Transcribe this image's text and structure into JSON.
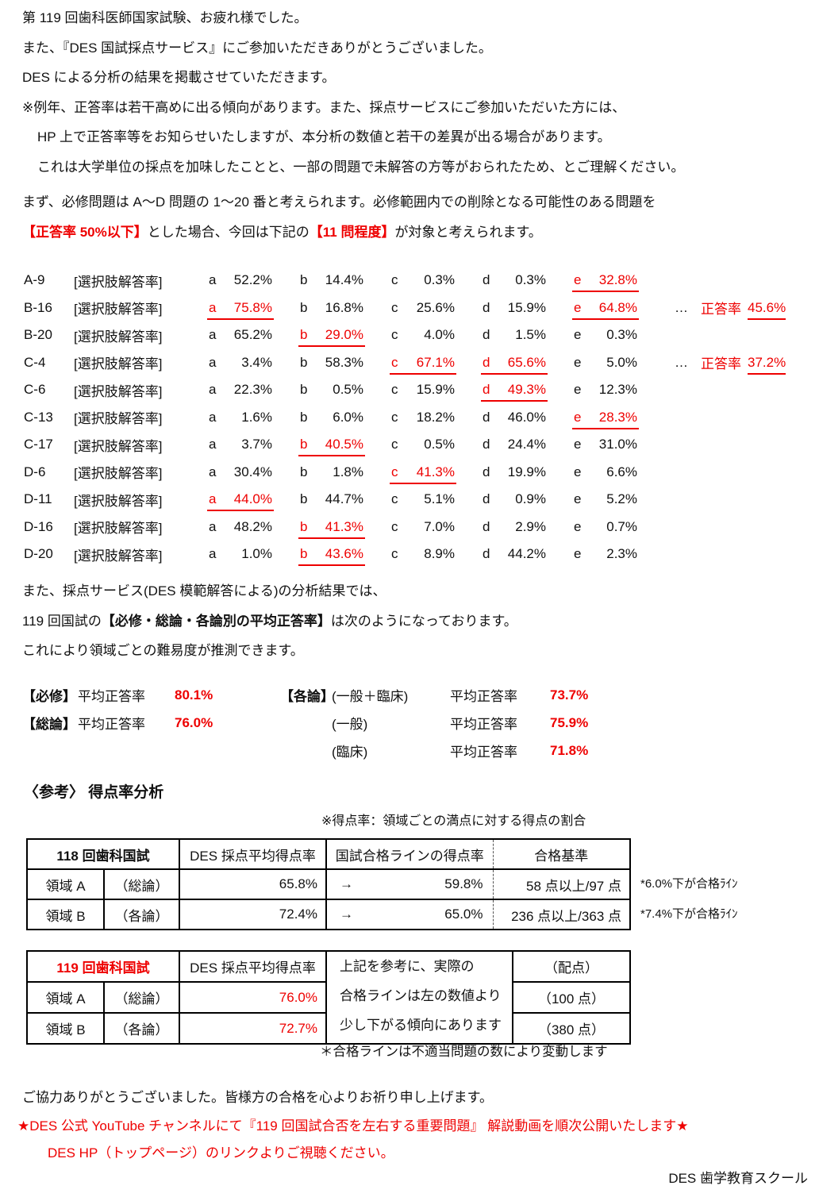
{
  "page": {
    "background": "#ffffff",
    "text_color": "#111111",
    "accent_red": "#ee0000"
  },
  "intro": {
    "lines": [
      "第 119 回歯科医師国家試験、お疲れ様でした。",
      "また、『DES 国試採点サービス』にご参加いただきありがとうございました。",
      "DES による分析の結果を掲載させていただきます。",
      "※例年、正答率は若干高めに出る傾向があります。また、採点サービスにご参加いただいた方には、",
      "HP 上で正答率等をお知らせいたしますが、本分析の数値と若干の差異が出る場合があります。",
      "これは大学単位の採点を加味したことと、一部の問題で未解答の方等がおられたため、とご理解ください。"
    ]
  },
  "premise": {
    "line1": "まず、必修問題は A～D 問題の 1～20 番と考えられます。必修範囲内での削除となる可能性のある問題を",
    "hl1": "【正答率 50%以下】",
    "mid": "とした場合、今回は下記の",
    "hl2": "【11 問程度】",
    "tail": "が対象と考えられます。"
  },
  "answers": {
    "row_label": "[選択肢解答率]",
    "ellipsis": "…",
    "note_label": "正答率",
    "rows": [
      {
        "id": "A-9",
        "a": "52.2%",
        "b": "14.4%",
        "c": "0.3%",
        "d": "0.3%",
        "e": "32.8%",
        "hl": [
          "e"
        ],
        "note": null
      },
      {
        "id": "B-16",
        "a": "75.8%",
        "b": "16.8%",
        "c": "25.6%",
        "d": "15.9%",
        "e": "64.8%",
        "hl": [
          "a",
          "e"
        ],
        "note": "45.6%"
      },
      {
        "id": "B-20",
        "a": "65.2%",
        "b": "29.0%",
        "c": "4.0%",
        "d": "1.5%",
        "e": "0.3%",
        "hl": [
          "b"
        ],
        "note": null
      },
      {
        "id": "C-4",
        "a": "3.4%",
        "b": "58.3%",
        "c": "67.1%",
        "d": "65.6%",
        "e": "5.0%",
        "hl": [
          "c",
          "d"
        ],
        "note": "37.2%"
      },
      {
        "id": "C-6",
        "a": "22.3%",
        "b": "0.5%",
        "c": "15.9%",
        "d": "49.3%",
        "e": "12.3%",
        "hl": [
          "d"
        ],
        "note": null
      },
      {
        "id": "C-13",
        "a": "1.6%",
        "b": "6.0%",
        "c": "18.2%",
        "d": "46.0%",
        "e": "28.3%",
        "hl": [
          "e"
        ],
        "note": null
      },
      {
        "id": "C-17",
        "a": "3.7%",
        "b": "40.5%",
        "c": "0.5%",
        "d": "24.4%",
        "e": "31.0%",
        "hl": [
          "b"
        ],
        "note": null
      },
      {
        "id": "D-6",
        "a": "30.4%",
        "b": "1.8%",
        "c": "41.3%",
        "d": "19.9%",
        "e": "6.6%",
        "hl": [
          "c"
        ],
        "note": null
      },
      {
        "id": "D-11",
        "a": "44.0%",
        "b": "44.7%",
        "c": "5.1%",
        "d": "0.9%",
        "e": "5.2%",
        "hl": [
          "a"
        ],
        "note": null
      },
      {
        "id": "D-16",
        "a": "48.2%",
        "b": "41.3%",
        "c": "7.0%",
        "d": "2.9%",
        "e": "0.7%",
        "hl": [
          "b"
        ],
        "note": null
      },
      {
        "id": "D-20",
        "a": "1.0%",
        "b": "43.6%",
        "c": "8.9%",
        "d": "44.2%",
        "e": "2.3%",
        "hl": [
          "b"
        ],
        "note": null
      }
    ]
  },
  "analysis_intro": {
    "line1": "また、採点サービス(DES 模範解答による)の分析結果では、",
    "line2_pre": "119 回国試の",
    "line2_bold": "【必修・総論・各論別の平均正答率】",
    "line2_post": "は次のようになっております。",
    "line3": "これにより領域ごとの難易度が推測できます。"
  },
  "averages": {
    "label_text": "平均正答率",
    "rows": [
      {
        "left_bracket": "【必修】",
        "left_value": "80.1%",
        "right_bracket": "【各論】",
        "right_scope": "(一般＋臨床)",
        "right_value": "73.7%"
      },
      {
        "left_bracket": "【総論】",
        "left_value": "76.0%",
        "right_bracket": "",
        "right_scope": "(一般)",
        "right_value": "75.9%"
      },
      {
        "left_bracket": "",
        "left_value": "",
        "right_bracket": "",
        "right_scope": "(臨床)",
        "right_value": "71.8%"
      }
    ]
  },
  "reference": {
    "heading": "〈参考〉 得点率分析",
    "note": "※得点率：領域ごとの満点に対する得点の割合",
    "table118": {
      "title": "118 回歯科国試",
      "col_avg": "DES 採点平均得点率",
      "col_passline": "国試合格ラインの得点率",
      "col_criteria": "合格基準",
      "rows": [
        {
          "area": "領域 A",
          "scope": "（総論）",
          "avg": "65.8%",
          "arrow": "→",
          "passline": "59.8%",
          "criteria": "58 点以上/97 点",
          "side_note": "*6.0%下が合格ﾗｲﾝ"
        },
        {
          "area": "領域 B",
          "scope": "（各論）",
          "avg": "72.4%",
          "arrow": "→",
          "passline": "65.0%",
          "criteria": "236 点以上/363 点",
          "side_note": "*7.4%下が合格ﾗｲﾝ"
        }
      ]
    },
    "table119": {
      "title": "119 回歯科国試",
      "col_avg": "DES 採点平均得点率",
      "merged_lines": [
        "上記を参考に、実際の",
        "合格ラインは左の数値より",
        "少し下がる傾向にあります"
      ],
      "col_points": "（配点）",
      "rows": [
        {
          "area": "領域 A",
          "scope": "（総論）",
          "avg": "76.0%",
          "points": "（100 点）"
        },
        {
          "area": "領域 B",
          "scope": "（各論）",
          "avg": "72.7%",
          "points": "（380 点）"
        }
      ]
    },
    "footnote": "＊合格ラインは不適当問題の数により変動します"
  },
  "footer": {
    "thanks": "ご協力ありがとうございました。皆様方の合格を心よりお祈り申し上げます。",
    "youtube": "★DES 公式 YouTube チャンネルにて『119 回国試合否を左右する重要問題』 解説動画を順次公開いたします★",
    "hp": "DES HP（トップページ）のリンクよりご視聴ください。",
    "signature": "DES 歯学教育スクール"
  }
}
